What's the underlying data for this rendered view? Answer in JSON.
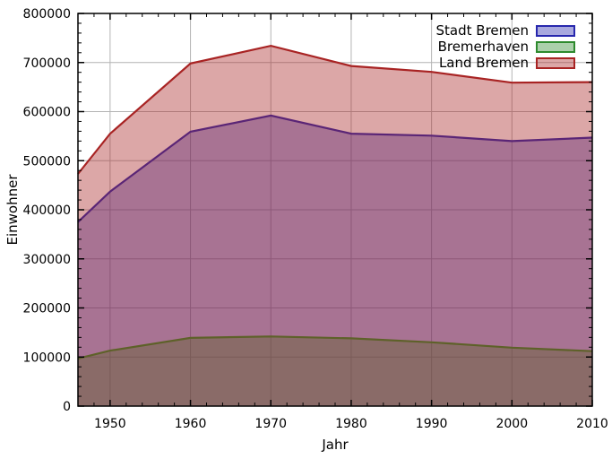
{
  "chart_data": {
    "type": "area",
    "title": "",
    "xlabel": "Jahr",
    "ylabel": "Einwohner",
    "xlim": [
      1946,
      2010
    ],
    "ylim": [
      0,
      800000
    ],
    "x_major_ticks": [
      1950,
      1960,
      1970,
      1980,
      1990,
      2000,
      2010
    ],
    "x_minor_step": 2,
    "y_major_ticks": [
      0,
      100000,
      200000,
      300000,
      400000,
      500000,
      600000,
      700000,
      800000
    ],
    "y_minor_step": 20000,
    "grid": true,
    "grid_color": "#b4b4b4",
    "background_color": "#ffffff",
    "border_color": "#000000",
    "fill_opacity": 0.4,
    "legend_position": "top-right-inside",
    "x": [
      1946,
      1950,
      1960,
      1970,
      1980,
      1990,
      2000,
      2010
    ],
    "series": [
      {
        "name": "Stadt Bremen",
        "color": "#2727ad",
        "values": [
          375000,
          437000,
          559000,
          592000,
          555000,
          551000,
          540000,
          547000
        ]
      },
      {
        "name": "Bremerhaven",
        "color": "#2d8a2d",
        "values": [
          97000,
          113000,
          139000,
          142000,
          138000,
          130000,
          119000,
          112000
        ]
      },
      {
        "name": "Land Bremen",
        "color": "#a82323",
        "values": [
          473000,
          555000,
          698000,
          734000,
          693000,
          681000,
          659000,
          660000
        ]
      }
    ]
  }
}
